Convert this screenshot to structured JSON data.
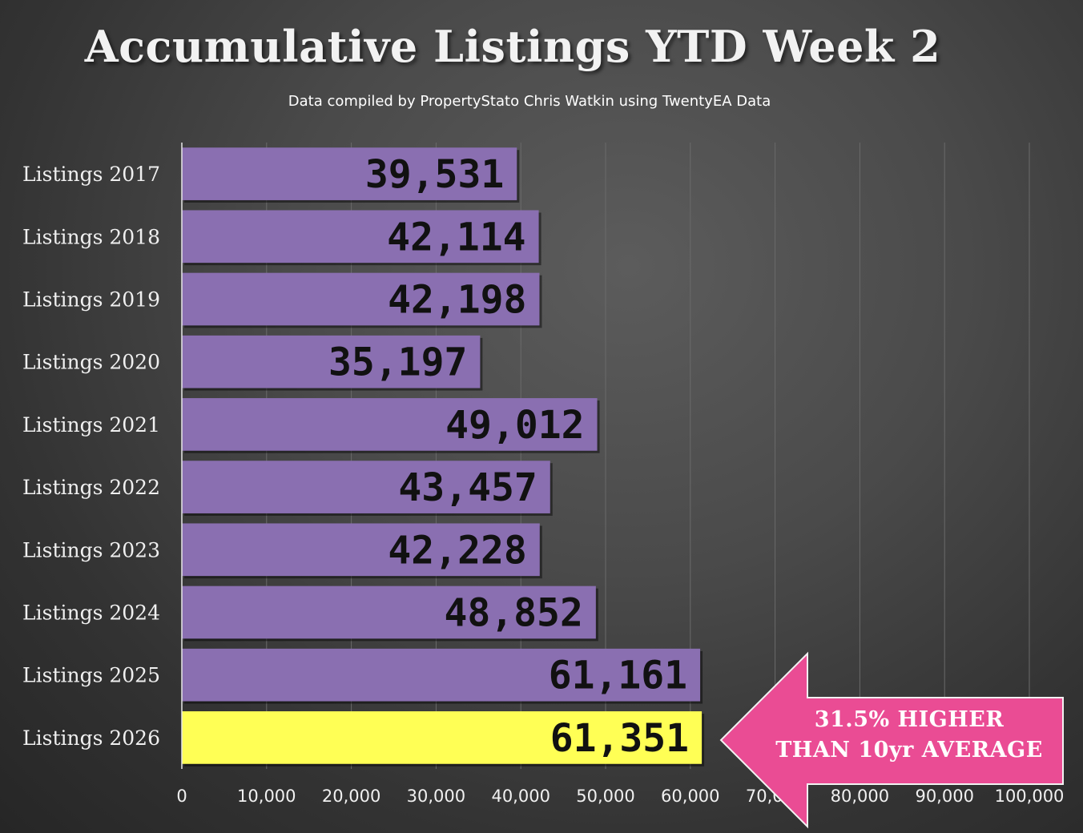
{
  "header": {
    "title": "Accumulative Listings YTD Week 2",
    "subtitle": "Data compiled by PropertyStato Chris Watkin using TwentyEA Data"
  },
  "callout": {
    "line1": "31.5% HIGHER",
    "line2": "THAN 10yr AVERAGE",
    "color": "#ea4c94"
  },
  "chart_data": {
    "type": "bar",
    "orientation": "horizontal",
    "title": "Accumulative Listings YTD Week 2",
    "subtitle": "Data compiled by PropertyStato Chris Watkin using TwentyEA Data",
    "categories": [
      "Listings 2017",
      "Listings 2018",
      "Listings 2019",
      "Listings 2020",
      "Listings 2021",
      "Listings 2022",
      "Listings 2023",
      "Listings 2024",
      "Listings 2025",
      "Listings 2026"
    ],
    "values": [
      39531,
      42114,
      42198,
      35197,
      49012,
      43457,
      42228,
      48852,
      61161,
      61351
    ],
    "value_labels": [
      "39,531",
      "42,114",
      "42,198",
      "35,197",
      "49,012",
      "43,457",
      "42,228",
      "48,852",
      "61,161",
      "61,351"
    ],
    "xlim": [
      0,
      100000
    ],
    "xticks": [
      0,
      10000,
      20000,
      30000,
      40000,
      50000,
      60000,
      70000,
      80000,
      90000,
      100000
    ],
    "xtick_labels": [
      "0",
      "10,000",
      "20,000",
      "30,000",
      "40,000",
      "50,000",
      "60,000",
      "70,000",
      "80,000",
      "90,000",
      "100,000"
    ],
    "grid": true,
    "legend": "none",
    "bar_color": "#8a6fb1",
    "highlight_color": "#ffff55",
    "highlight_category": "Listings 2026"
  }
}
